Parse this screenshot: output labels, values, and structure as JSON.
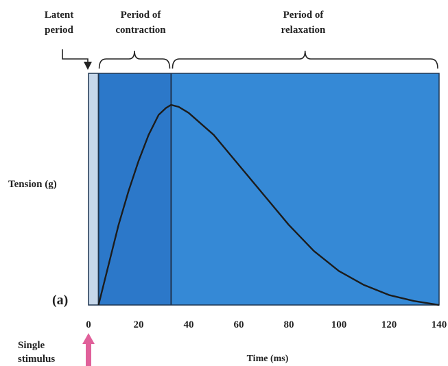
{
  "chart_data": {
    "type": "line",
    "panel_label": "(a)",
    "xlabel": "Time (ms)",
    "ylabel": "Tension (g)",
    "xlim": [
      0,
      140
    ],
    "xticks": [
      0,
      20,
      40,
      60,
      80,
      100,
      120,
      140
    ],
    "series": [
      {
        "name": "",
        "x": [
          4,
          8,
          12,
          16,
          20,
          24,
          28,
          31,
          33,
          36,
          40,
          50,
          60,
          70,
          80,
          90,
          100,
          110,
          120,
          130,
          140
        ],
        "y": [
          0,
          0.2,
          0.4,
          0.57,
          0.72,
          0.85,
          0.95,
          0.985,
          1.0,
          0.99,
          0.96,
          0.85,
          0.7,
          0.55,
          0.4,
          0.27,
          0.17,
          0.1,
          0.05,
          0.02,
          0
        ]
      }
    ],
    "regions": {
      "latent": {
        "label": "Latent\nperiod",
        "x": [
          0,
          4
        ]
      },
      "contraction": {
        "label": "Period of\ncontraction",
        "x": [
          4,
          33
        ]
      },
      "relaxation": {
        "label": "Period of\nrelaxation",
        "x": [
          33,
          140
        ]
      }
    },
    "stimulus": {
      "label": "Single\nstimulus",
      "x": 0
    }
  },
  "colors": {
    "latent": "#c6d7ea",
    "contraction": "#2c78c9",
    "relaxation": "#3589d6",
    "curve": "#1c1c1c",
    "stimulus_arrow": "#e0609a"
  }
}
